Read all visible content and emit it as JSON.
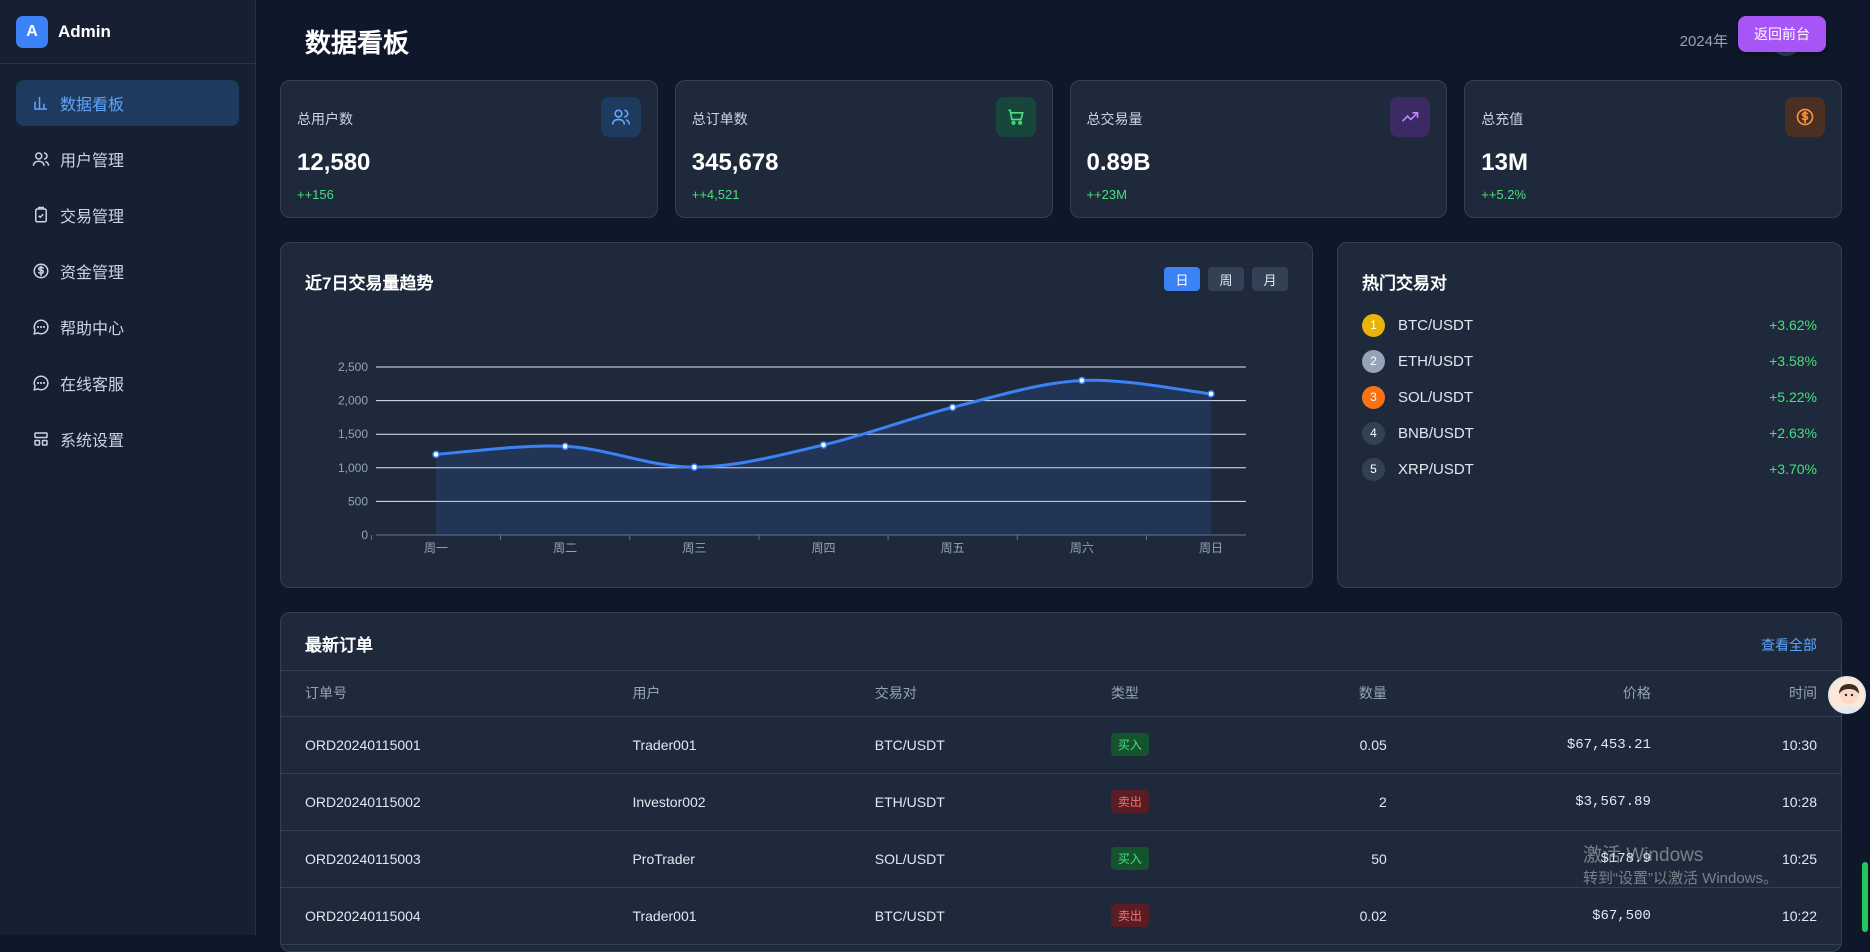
{
  "brand": {
    "logo_letter": "A",
    "name": "Admin"
  },
  "sidebar": {
    "items": [
      {
        "label": "数据看板",
        "icon": "bar-chart-icon",
        "active": true
      },
      {
        "label": "用户管理",
        "icon": "users-icon",
        "active": false
      },
      {
        "label": "交易管理",
        "icon": "clipboard-icon",
        "active": false
      },
      {
        "label": "资金管理",
        "icon": "dollar-circle-icon",
        "active": false
      },
      {
        "label": "帮助中心",
        "icon": "chat-icon",
        "active": false
      },
      {
        "label": "在线客服",
        "icon": "chat-icon",
        "active": false
      },
      {
        "label": "系统设置",
        "icon": "layout-icon",
        "active": false
      }
    ]
  },
  "header": {
    "title": "数据看板",
    "date": "2024年",
    "back_label": "返回前台"
  },
  "stats": [
    {
      "label": "总用户数",
      "value": "12,580",
      "delta": "++156",
      "icon": "users-icon",
      "color": "#60a5fa"
    },
    {
      "label": "总订单数",
      "value": "345,678",
      "delta": "++4,521",
      "icon": "cart-icon",
      "color": "#4ade80"
    },
    {
      "label": "总交易量",
      "value": "0.89B",
      "delta": "++23M",
      "icon": "trend-up-icon",
      "color": "#c084fc"
    },
    {
      "label": "总充值",
      "value": "13M",
      "delta": "++5.2%",
      "icon": "dollar-circle-icon",
      "color": "#fb923c"
    }
  ],
  "chart_panel": {
    "title": "近7日交易量趋势",
    "ranges": [
      "日",
      "周",
      "月"
    ],
    "active_range": "日"
  },
  "chart_data": {
    "type": "line",
    "categories": [
      "周一",
      "周二",
      "周三",
      "周四",
      "周五",
      "周六",
      "周日"
    ],
    "values": [
      1200,
      1320,
      1010,
      1340,
      1900,
      2300,
      2100
    ],
    "ylim": [
      0,
      2500
    ],
    "yticks": [
      "0",
      "500",
      "1,000",
      "1,500",
      "2,000",
      "2,500"
    ],
    "grid": true,
    "area_fill": true,
    "color": "#3b82f6"
  },
  "hot_panel": {
    "title": "热门交易对",
    "items": [
      {
        "rank": "1",
        "pair": "BTC/USDT",
        "change": "+3.62%",
        "color": "#eab308"
      },
      {
        "rank": "2",
        "pair": "ETH/USDT",
        "change": "+3.58%",
        "color": "#94a3b8"
      },
      {
        "rank": "3",
        "pair": "SOL/USDT",
        "change": "+5.22%",
        "color": "#f97316"
      },
      {
        "rank": "4",
        "pair": "BNB/USDT",
        "change": "+2.63%",
        "color": "#334155"
      },
      {
        "rank": "5",
        "pair": "XRP/USDT",
        "change": "+3.70%",
        "color": "#334155"
      }
    ]
  },
  "orders": {
    "title": "最新订单",
    "view_all": "查看全部",
    "columns": [
      "订单号",
      "用户",
      "交易对",
      "类型",
      "数量",
      "价格",
      "时间"
    ],
    "rows": [
      {
        "id": "ORD20240115001",
        "user": "Trader001",
        "pair": "BTC/USDT",
        "type": "买入",
        "side": "buy",
        "qty": "0.05",
        "price": "$67,453.21",
        "time": "10:30"
      },
      {
        "id": "ORD20240115002",
        "user": "Investor002",
        "pair": "ETH/USDT",
        "type": "卖出",
        "side": "sell",
        "qty": "2",
        "price": "$3,567.89",
        "time": "10:28"
      },
      {
        "id": "ORD20240115003",
        "user": "ProTrader",
        "pair": "SOL/USDT",
        "type": "买入",
        "side": "buy",
        "qty": "50",
        "price": "$178.9",
        "time": "10:25"
      },
      {
        "id": "ORD20240115004",
        "user": "Trader001",
        "pair": "BTC/USDT",
        "type": "卖出",
        "side": "sell",
        "qty": "0.02",
        "price": "$67,500",
        "time": "10:22"
      }
    ]
  },
  "os_watermark": {
    "line1": "激活 Windows",
    "line2": "转到“设置”以激活 Windows。"
  }
}
